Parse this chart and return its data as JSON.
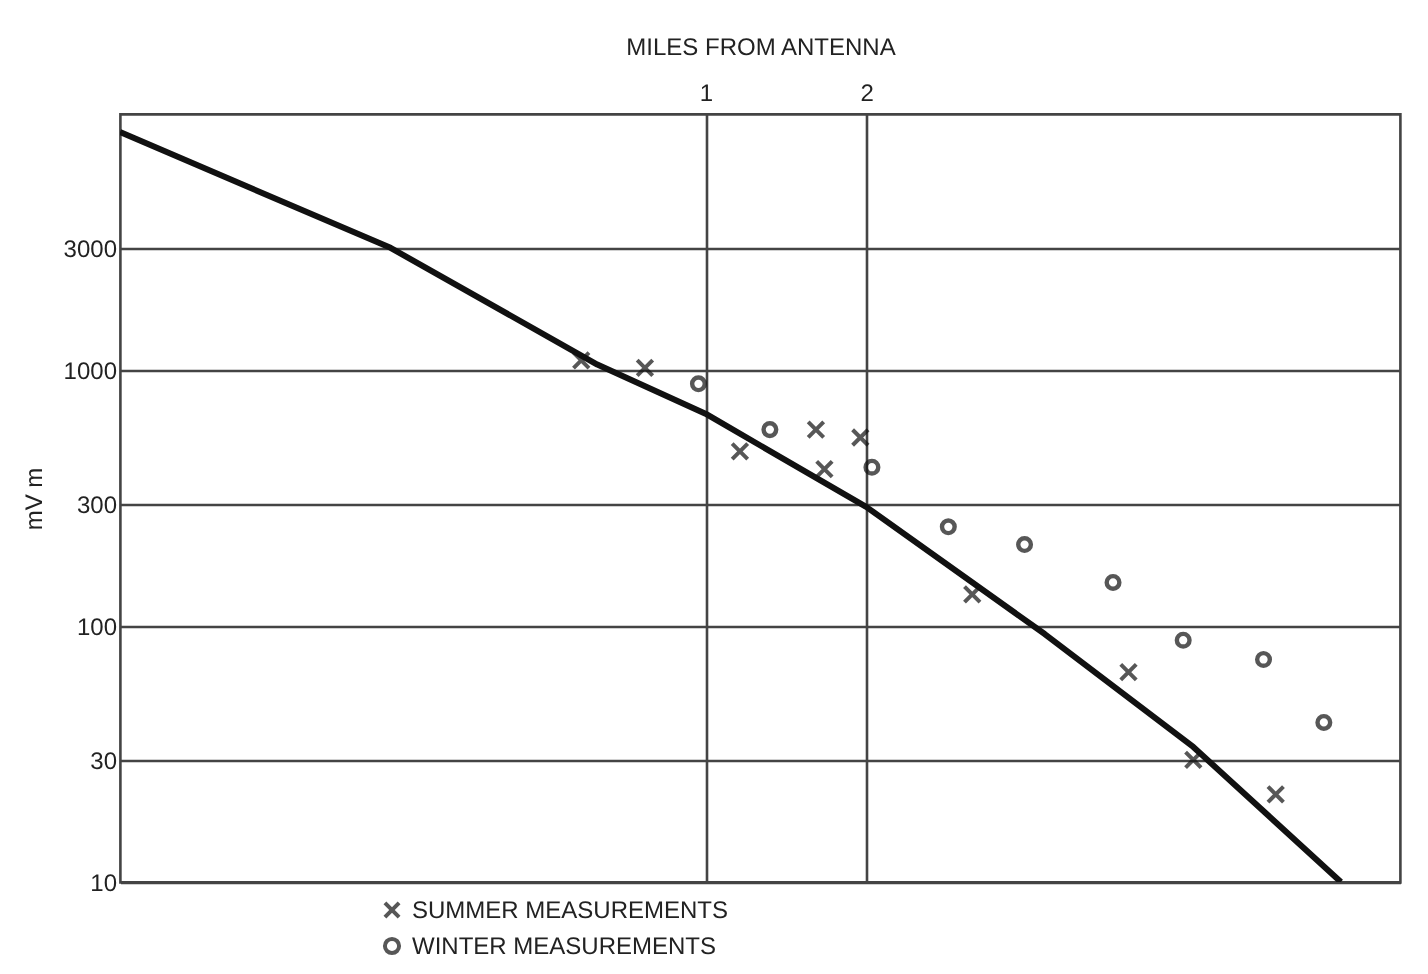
{
  "chart_data": {
    "type": "scatter",
    "xlabel": "MILES FROM ANTENNA",
    "ylabel": "mV m",
    "log": "xy",
    "xlim": [
      0.08,
      20
    ],
    "xticks": [
      1,
      2
    ],
    "ylim": [
      10,
      10000
    ],
    "yticks": [
      10,
      30,
      100,
      300,
      1000,
      3000
    ],
    "grid": true,
    "legend": "bottom left",
    "series": [
      {
        "type": "line",
        "color": "#111111",
        "marker": "none",
        "line_style": "solid",
        "x": [
          0.08,
          0.257,
          0.627,
          1,
          2,
          4.32,
          8.2,
          15.5
        ],
        "values": [
          8500,
          3000,
          1050,
          675,
          292,
          93,
          33.7,
          10
        ]
      },
      {
        "name": "SUMMER MEASUREMENTS",
        "color": "#111111",
        "marker": "cross",
        "x": [
          0.585,
          0.77,
          1.16,
          1.61,
          1.67,
          1.95,
          3.16,
          6.2,
          8.2,
          11.7
        ],
        "values": [
          1090,
          1020,
          481,
          585,
          410,
          545,
          133,
          66,
          30,
          22
        ]
      },
      {
        "name": "WINTER MEASUREMENTS",
        "color": "#111111",
        "marker": "circle",
        "x": [
          0.97,
          1.32,
          2.05,
          2.85,
          3.96,
          5.8,
          7.85,
          11.1,
          14.4
        ],
        "values": [
          883,
          585,
          417,
          244,
          208,
          148,
          88,
          74,
          42
        ]
      }
    ]
  }
}
